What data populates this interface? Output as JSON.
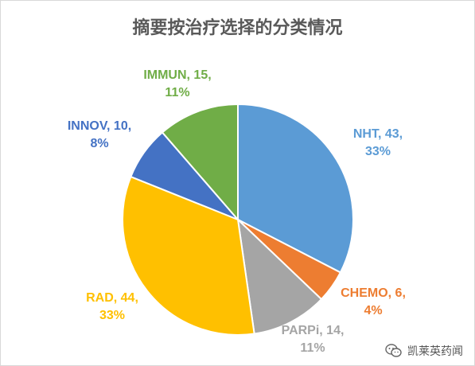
{
  "chart_data": {
    "type": "pie",
    "title": "摘要按治疗选择的分类情况",
    "legend": "none",
    "slices": [
      {
        "name": "NHT",
        "value": 43,
        "percent": "33%",
        "color": "#5B9BD5",
        "label_line1": "NHT, 43,",
        "label_line2": "33%"
      },
      {
        "name": "CHEMO",
        "value": 6,
        "percent": "4%",
        "color": "#ED7D31",
        "label_line1": "CHEMO, 6,",
        "label_line2": "4%"
      },
      {
        "name": "PARPi",
        "value": 14,
        "percent": "11%",
        "color": "#A5A5A5",
        "label_line1": "PARPi, 14,",
        "label_line2": "11%"
      },
      {
        "name": "RAD",
        "value": 44,
        "percent": "33%",
        "color": "#FFC000",
        "label_line1": "RAD, 44,",
        "label_line2": "33%"
      },
      {
        "name": "INNOV",
        "value": 10,
        "percent": "8%",
        "color": "#4472C4",
        "label_line1": "INNOV, 10,",
        "label_line2": "8%"
      },
      {
        "name": "IMMUN",
        "value": 15,
        "percent": "11%",
        "color": "#70AD47",
        "label_line1": "IMMUN, 15,",
        "label_line2": "11%"
      }
    ]
  },
  "watermark": {
    "text": "凯莱英药闻",
    "icon": "wechat-icon"
  }
}
